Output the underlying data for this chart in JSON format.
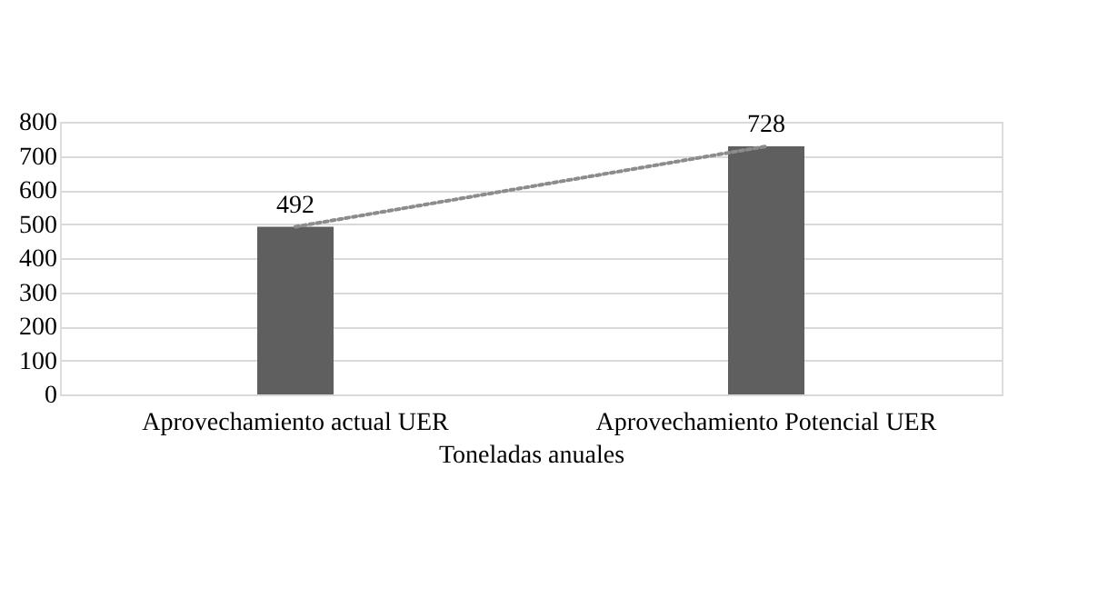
{
  "chart_data": {
    "type": "bar",
    "categories": [
      "Aprovechamiento actual UER",
      "Aprovechamiento Potencial UER"
    ],
    "xlabel": "Toneladas anuales",
    "ylim": [
      0,
      800
    ],
    "yticks": [
      0,
      100,
      200,
      300,
      400,
      500,
      600,
      700,
      800
    ],
    "grid": "y",
    "series": [
      {
        "color": "#5f5f5f",
        "values": [
          492,
          728
        ],
        "value_labels": [
          "492",
          "728"
        ]
      },
      {
        "type": "line",
        "color": "#8c8c8c",
        "values": [
          492,
          728
        ],
        "line_style": "dotted",
        "marker": "none"
      }
    ]
  }
}
